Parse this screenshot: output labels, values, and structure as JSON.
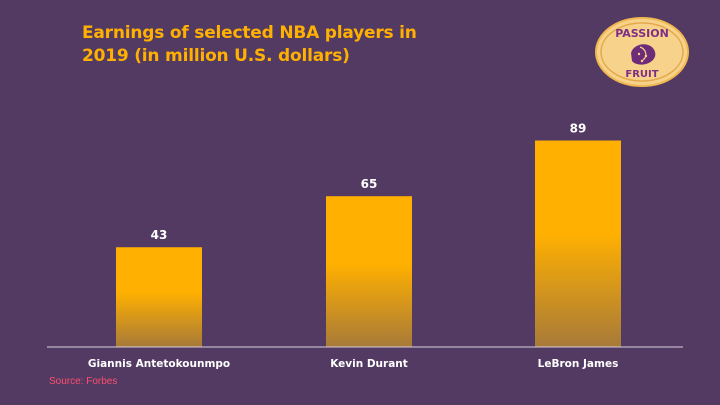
{
  "title": "Earnings of selected NBA players in 2019 (in million U.S. dollars)",
  "logo": {
    "top_text": "PASSION",
    "bottom_text": "FRUIT",
    "icon": "passion-fruit-icon"
  },
  "source": {
    "label": "Source:",
    "name": "Forbes"
  },
  "colors": {
    "background": "#533a63",
    "accent": "#ffb000",
    "bar_bottom": "#a77a39",
    "source": "#ff4d6d",
    "axis": "#d9d0df"
  },
  "chart_data": {
    "type": "bar",
    "categories": [
      "Giannis Antetokounmpo",
      "Kevin Durant",
      "LeBron James"
    ],
    "values": [
      43,
      65,
      89
    ],
    "title": "Earnings of selected NBA players in 2019 (in million U.S. dollars)",
    "xlabel": "",
    "ylabel": "",
    "ylim": [
      0,
      100
    ],
    "grid": false,
    "legend": "none",
    "data_labels": true
  }
}
